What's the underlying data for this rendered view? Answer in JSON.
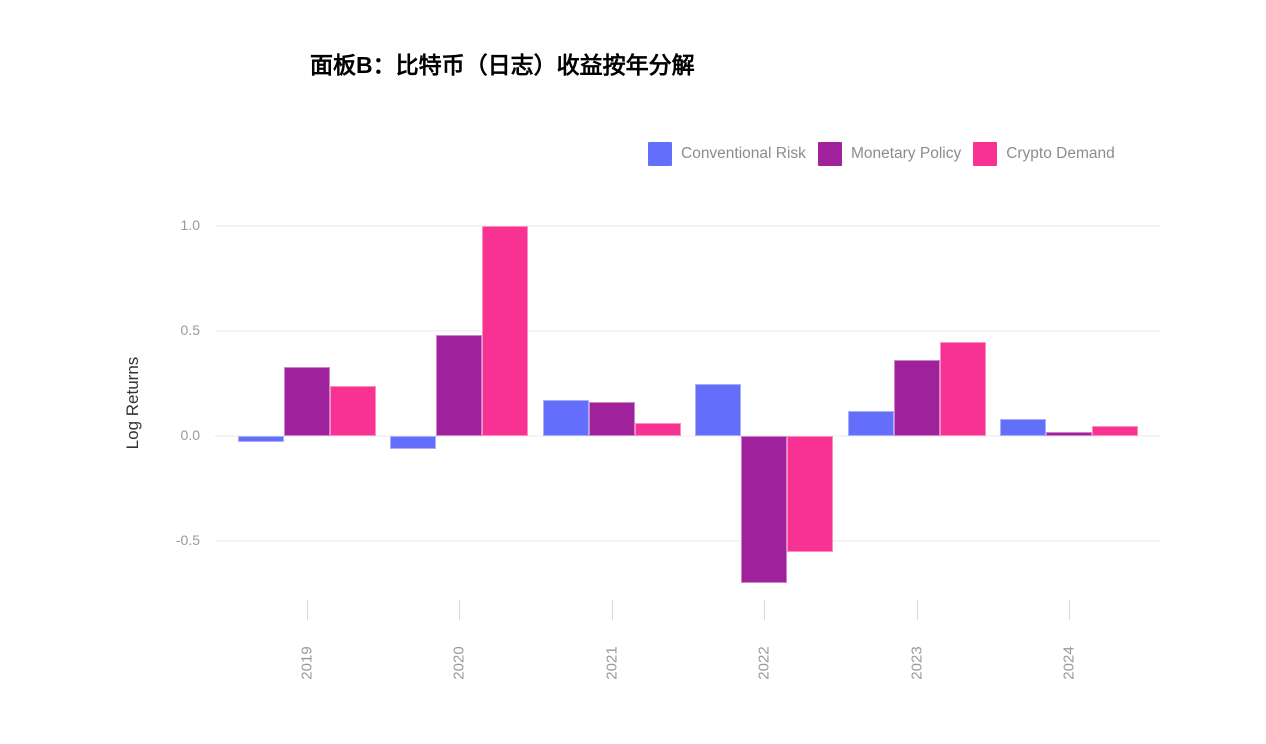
{
  "panel_title": "面板B：比特币（日志）收益按年分解",
  "colors": {
    "conventional_risk": "#636EFA",
    "monetary_policy": "#A0219C",
    "crypto_demand": "#F73293",
    "grid": "#f4f4f4",
    "tick_label": "#999999",
    "legend_text": "#8c8c8c",
    "axis_title_text": "#333333",
    "background": "#ffffff"
  },
  "chart_data": {
    "type": "bar",
    "title": "面板B：比特币（日志）收益按年分解",
    "categories": [
      "2019",
      "2020",
      "2021",
      "2022",
      "2023",
      "2024"
    ],
    "series": [
      {
        "name": "Conventional Risk",
        "color": "#636EFA",
        "values": [
          -0.03,
          -0.06,
          0.17,
          0.25,
          0.12,
          0.08
        ]
      },
      {
        "name": "Monetary Policy",
        "color": "#A0219C",
        "values": [
          0.33,
          0.48,
          0.16,
          -0.7,
          0.36,
          0.02
        ]
      },
      {
        "name": "Crypto Demand",
        "color": "#F73293",
        "values": [
          0.24,
          1.0,
          0.06,
          -0.55,
          0.45,
          0.05
        ]
      }
    ],
    "xlabel": "",
    "ylabel": "Log Returns",
    "yticks": [
      1.0,
      0.5,
      0.0,
      -0.5
    ],
    "ylim": [
      -0.78,
      1.15
    ],
    "grid": true,
    "legend_position": "top-right",
    "x_tick_label_rotation_deg": -90
  }
}
